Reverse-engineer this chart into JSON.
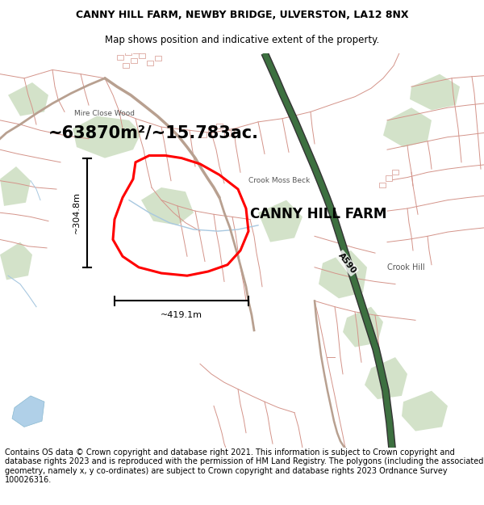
{
  "title_line1": "CANNY HILL FARM, NEWBY BRIDGE, ULVERSTON, LA12 8NX",
  "title_line2": "Map shows position and indicative extent of the property.",
  "area_text": "~63870m²/~15.783ac.",
  "farm_label": "CANNY HILL FARM",
  "crook_moss_label": "Crook Moss Beck",
  "crook_hill_label": "Crook Hill",
  "mire_close_label": "Mire Close Wood",
  "road_label": "A590",
  "dim_width": "~419.1m",
  "dim_height": "~304.8m",
  "footer_text": "Contains OS data © Crown copyright and database right 2021. This information is subject to Crown copyright and database rights 2023 and is reproduced with the permission of HM Land Registry. The polygons (including the associated geometry, namely x, y co-ordinates) are subject to Crown copyright and database rights 2023 Ordnance Survey 100026316.",
  "title_fontsize": 9,
  "subtitle_fontsize": 8.5,
  "footer_fontsize": 7,
  "area_fontsize": 16,
  "farm_label_fontsize": 13,
  "map_facecolor": "#f2ede8",
  "salmon": "#d4948a",
  "green_light": "#c5d9b8",
  "road_green": "#3d7040",
  "road_dark": "#333333",
  "water_blue": "#a8c8e0",
  "pond_blue": "#b0d0e8"
}
